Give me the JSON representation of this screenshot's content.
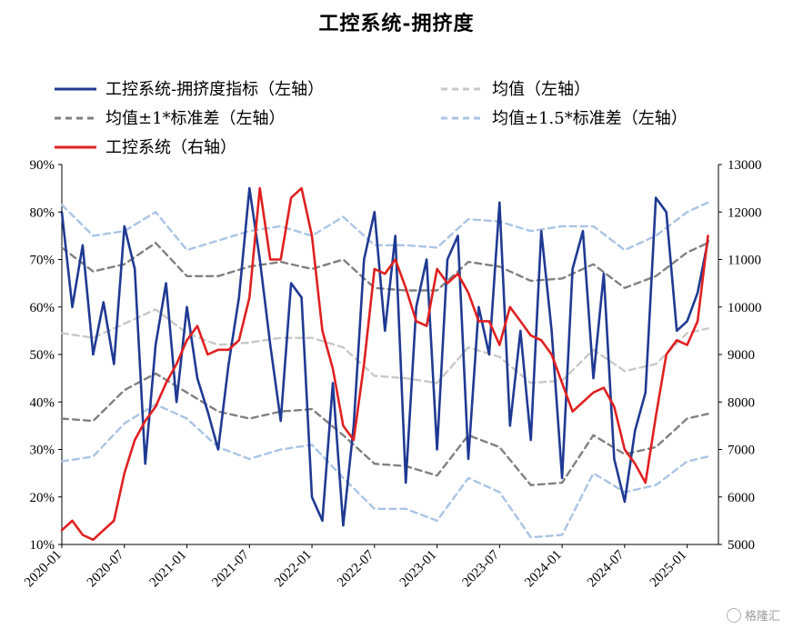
{
  "chart_data": {
    "type": "line",
    "title": "工控系统-拥挤度",
    "left_axis": {
      "ticks": [
        "10%",
        "20%",
        "30%",
        "40%",
        "50%",
        "60%",
        "70%",
        "80%",
        "90%"
      ],
      "ylim": [
        0.1,
        0.9
      ]
    },
    "right_axis": {
      "ticks": [
        "5000",
        "6000",
        "7000",
        "8000",
        "9000",
        "10000",
        "11000",
        "12000",
        "13000"
      ],
      "ylim": [
        5000,
        13000
      ]
    },
    "x_ticks": [
      "2020-01",
      "2020-07",
      "2021-01",
      "2021-07",
      "2022-01",
      "2022-07",
      "2023-01",
      "2023-07",
      "2024-01",
      "2024-07",
      "2025-01"
    ],
    "x_range": [
      "2020-01",
      "2025-04"
    ],
    "legend": [
      {
        "name": "工控系统-拥挤度指标（左轴）",
        "color": "#1f3a93",
        "style": "solid"
      },
      {
        "name": "均值（左轴）",
        "color": "#c8c8c8",
        "style": "dash"
      },
      {
        "name": "均值±1*标准差（左轴）",
        "color": "#808080",
        "style": "dash"
      },
      {
        "name": "均值±1.5*标准差（左轴）",
        "color": "#aac4e4",
        "style": "dash"
      },
      {
        "name": "工控系统（右轴）",
        "color": "#e02020",
        "style": "solid"
      }
    ],
    "series": [
      {
        "name": "工控系统-拥挤度指标（左轴）",
        "axis": "left",
        "x": [
          "2020-01",
          "2020-02",
          "2020-03",
          "2020-04",
          "2020-05",
          "2020-06",
          "2020-07",
          "2020-08",
          "2020-09",
          "2020-10",
          "2020-11",
          "2020-12",
          "2021-01",
          "2021-02",
          "2021-03",
          "2021-04",
          "2021-05",
          "2021-06",
          "2021-07",
          "2021-08",
          "2021-09",
          "2021-10",
          "2021-11",
          "2021-12",
          "2022-01",
          "2022-02",
          "2022-03",
          "2022-04",
          "2022-05",
          "2022-06",
          "2022-07",
          "2022-08",
          "2022-09",
          "2022-10",
          "2022-11",
          "2022-12",
          "2023-01",
          "2023-02",
          "2023-03",
          "2023-04",
          "2023-05",
          "2023-06",
          "2023-07",
          "2023-08",
          "2023-09",
          "2023-10",
          "2023-11",
          "2023-12",
          "2024-01",
          "2024-02",
          "2024-03",
          "2024-04",
          "2024-05",
          "2024-06",
          "2024-07",
          "2024-08",
          "2024-09",
          "2024-10",
          "2024-11",
          "2024-12",
          "2025-01",
          "2025-02",
          "2025-03"
        ],
        "values": [
          0.8,
          0.6,
          0.73,
          0.5,
          0.61,
          0.48,
          0.77,
          0.68,
          0.27,
          0.52,
          0.65,
          0.4,
          0.6,
          0.45,
          0.38,
          0.3,
          0.48,
          0.62,
          0.85,
          0.7,
          0.52,
          0.36,
          0.65,
          0.62,
          0.2,
          0.15,
          0.44,
          0.14,
          0.35,
          0.7,
          0.8,
          0.55,
          0.75,
          0.23,
          0.6,
          0.7,
          0.3,
          0.7,
          0.75,
          0.28,
          0.6,
          0.5,
          0.82,
          0.35,
          0.55,
          0.32,
          0.76,
          0.55,
          0.24,
          0.68,
          0.76,
          0.45,
          0.67,
          0.28,
          0.19,
          0.34,
          0.42,
          0.83,
          0.8,
          0.55,
          0.57,
          0.63,
          0.74
        ]
      },
      {
        "name": "工控系统（右轴）",
        "axis": "right",
        "x": [
          "2020-01",
          "2020-02",
          "2020-03",
          "2020-04",
          "2020-05",
          "2020-06",
          "2020-07",
          "2020-08",
          "2020-09",
          "2020-10",
          "2020-11",
          "2020-12",
          "2021-01",
          "2021-02",
          "2021-03",
          "2021-04",
          "2021-05",
          "2021-06",
          "2021-07",
          "2021-08",
          "2021-09",
          "2021-10",
          "2021-11",
          "2021-12",
          "2022-01",
          "2022-02",
          "2022-03",
          "2022-04",
          "2022-05",
          "2022-06",
          "2022-07",
          "2022-08",
          "2022-09",
          "2022-10",
          "2022-11",
          "2022-12",
          "2023-01",
          "2023-02",
          "2023-03",
          "2023-04",
          "2023-05",
          "2023-06",
          "2023-07",
          "2023-08",
          "2023-09",
          "2023-10",
          "2023-11",
          "2023-12",
          "2024-01",
          "2024-02",
          "2024-03",
          "2024-04",
          "2024-05",
          "2024-06",
          "2024-07",
          "2024-08",
          "2024-09",
          "2024-10",
          "2024-11",
          "2024-12",
          "2025-01",
          "2025-02",
          "2025-03"
        ],
        "values": [
          5300,
          5500,
          5200,
          5100,
          5300,
          5500,
          6500,
          7200,
          7600,
          7900,
          8400,
          8800,
          9300,
          9600,
          9000,
          9100,
          9100,
          9300,
          10200,
          12500,
          11000,
          11000,
          12300,
          12500,
          11500,
          9500,
          8700,
          7500,
          7200,
          8800,
          10800,
          10700,
          11000,
          10400,
          9700,
          9600,
          10800,
          10500,
          10700,
          10300,
          9700,
          9700,
          9200,
          10000,
          9700,
          9400,
          9300,
          9000,
          8400,
          7800,
          8000,
          8200,
          8300,
          7900,
          7000,
          6700,
          6300,
          7700,
          9000,
          9300,
          9200,
          9700,
          11500
        ]
      },
      {
        "name": "均值（左轴）",
        "axis": "left",
        "x": [
          "2020-01",
          "2020-04",
          "2020-07",
          "2020-10",
          "2021-01",
          "2021-04",
          "2021-07",
          "2021-10",
          "2022-01",
          "2022-04",
          "2022-07",
          "2022-10",
          "2023-01",
          "2023-04",
          "2023-07",
          "2023-10",
          "2024-01",
          "2024-04",
          "2024-07",
          "2024-10",
          "2025-01",
          "2025-03"
        ],
        "values": [
          0.545,
          0.535,
          0.565,
          0.595,
          0.545,
          0.52,
          0.525,
          0.535,
          0.535,
          0.515,
          0.455,
          0.45,
          0.44,
          0.515,
          0.495,
          0.44,
          0.445,
          0.51,
          0.465,
          0.48,
          0.545,
          0.555
        ]
      },
      {
        "name": "均值±1*标准差（左轴）上",
        "axis": "left",
        "x": [
          "2020-01",
          "2020-04",
          "2020-07",
          "2020-10",
          "2021-01",
          "2021-04",
          "2021-07",
          "2021-10",
          "2022-01",
          "2022-04",
          "2022-07",
          "2022-10",
          "2023-01",
          "2023-04",
          "2023-07",
          "2023-10",
          "2024-01",
          "2024-04",
          "2024-07",
          "2024-10",
          "2025-01",
          "2025-03"
        ],
        "values": [
          0.725,
          0.675,
          0.69,
          0.735,
          0.665,
          0.665,
          0.685,
          0.695,
          0.68,
          0.7,
          0.64,
          0.635,
          0.635,
          0.695,
          0.685,
          0.655,
          0.66,
          0.69,
          0.64,
          0.665,
          0.715,
          0.735
        ]
      },
      {
        "name": "均值±1*标准差（左轴）下",
        "axis": "left",
        "x": [
          "2020-01",
          "2020-04",
          "2020-07",
          "2020-10",
          "2021-01",
          "2021-04",
          "2021-07",
          "2021-10",
          "2022-01",
          "2022-04",
          "2022-07",
          "2022-10",
          "2023-01",
          "2023-04",
          "2023-07",
          "2023-10",
          "2024-01",
          "2024-04",
          "2024-07",
          "2024-10",
          "2025-01",
          "2025-03"
        ],
        "values": [
          0.365,
          0.36,
          0.425,
          0.46,
          0.42,
          0.38,
          0.365,
          0.38,
          0.385,
          0.33,
          0.27,
          0.265,
          0.245,
          0.33,
          0.305,
          0.225,
          0.23,
          0.33,
          0.29,
          0.305,
          0.365,
          0.375
        ]
      },
      {
        "name": "均值±1.5*标准差（左轴）上",
        "axis": "left",
        "x": [
          "2020-01",
          "2020-04",
          "2020-07",
          "2020-10",
          "2021-01",
          "2021-04",
          "2021-07",
          "2021-10",
          "2022-01",
          "2022-04",
          "2022-07",
          "2022-10",
          "2023-01",
          "2023-04",
          "2023-07",
          "2023-10",
          "2024-01",
          "2024-04",
          "2024-07",
          "2024-10",
          "2025-01",
          "2025-03"
        ],
        "values": [
          0.815,
          0.75,
          0.76,
          0.8,
          0.72,
          0.74,
          0.76,
          0.77,
          0.75,
          0.79,
          0.73,
          0.73,
          0.725,
          0.785,
          0.78,
          0.76,
          0.77,
          0.77,
          0.72,
          0.75,
          0.8,
          0.82
        ]
      },
      {
        "name": "均值±1.5*标准差（左轴）下",
        "axis": "left",
        "x": [
          "2020-01",
          "2020-04",
          "2020-07",
          "2020-10",
          "2021-01",
          "2021-04",
          "2021-07",
          "2021-10",
          "2022-01",
          "2022-04",
          "2022-07",
          "2022-10",
          "2023-01",
          "2023-04",
          "2023-07",
          "2023-10",
          "2024-01",
          "2024-04",
          "2024-07",
          "2024-10",
          "2025-01",
          "2025-03"
        ],
        "values": [
          0.275,
          0.285,
          0.355,
          0.395,
          0.365,
          0.305,
          0.28,
          0.3,
          0.31,
          0.24,
          0.175,
          0.175,
          0.15,
          0.24,
          0.21,
          0.115,
          0.12,
          0.25,
          0.21,
          0.225,
          0.275,
          0.285
        ]
      }
    ]
  },
  "watermark": {
    "text": "格隆汇"
  }
}
